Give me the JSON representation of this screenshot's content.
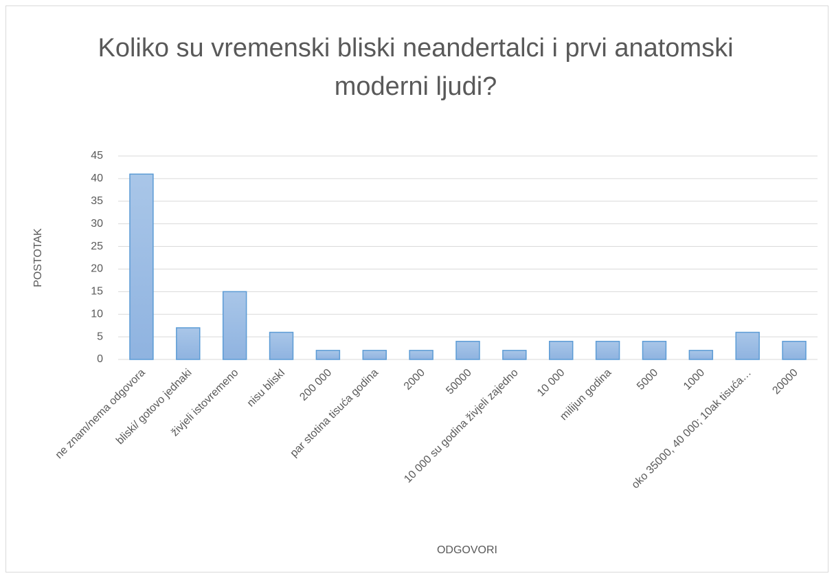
{
  "chart_data": {
    "type": "bar",
    "title": "Koliko su vremenski bliski neandertalci i prvi anatomski moderni ljudi?",
    "xlabel": "ODGOVORI",
    "ylabel": "POSTOTAK",
    "categories": [
      "ne znam/nema odgovora",
      "bliski/ gotovo jednaki",
      "živjeli istovremeno",
      "nisu bliskI",
      "200 000",
      "par stotina tisuća godina",
      "2000",
      "50000",
      "10 000 su godina živjeli zajedno",
      "10 000",
      "milijun godina",
      "5000",
      "1000",
      "oko 35000, 40 000; 10ak tisuća…",
      "20000"
    ],
    "values": [
      41,
      7,
      15,
      6,
      2,
      2,
      2,
      4,
      2,
      4,
      4,
      4,
      2,
      6,
      4
    ],
    "color": "#a9c6e8",
    "ylim": [
      0,
      45
    ],
    "yticks": [
      0,
      5,
      10,
      15,
      20,
      25,
      30,
      35,
      40,
      45
    ],
    "grid": true
  }
}
